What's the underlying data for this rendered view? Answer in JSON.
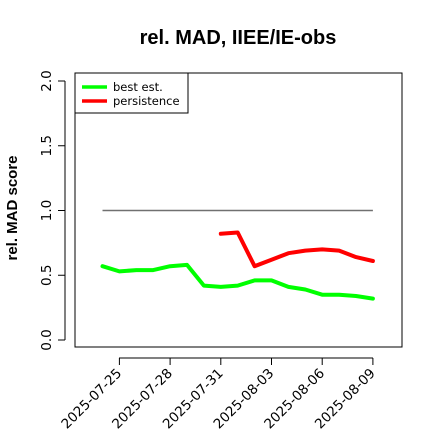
{
  "chart_data": {
    "type": "line",
    "title": "rel. MAD, IIEE/IE-obs",
    "xlabel": "",
    "ylabel": "rel. MAD score",
    "ylim": [
      0.0,
      2.0
    ],
    "yticks": [
      "0.0",
      "0.5",
      "1.0",
      "1.5",
      "2.0"
    ],
    "xticks": [
      "2025-07-25",
      "2025-07-28",
      "2025-07-31",
      "2025-08-03",
      "2025-08-06",
      "2025-08-09"
    ],
    "grid": false,
    "legend_position": "top-left",
    "series": [
      {
        "name": "best est.",
        "color": "#00ff00",
        "x": [
          "2025-07-24",
          "2025-07-25",
          "2025-07-26",
          "2025-07-27",
          "2025-07-28",
          "2025-07-29",
          "2025-07-30",
          "2025-07-31",
          "2025-08-01",
          "2025-08-02",
          "2025-08-03",
          "2025-08-04",
          "2025-08-05",
          "2025-08-06",
          "2025-08-07",
          "2025-08-08",
          "2025-08-09"
        ],
        "values": [
          0.57,
          0.53,
          0.54,
          0.54,
          0.57,
          0.58,
          0.42,
          0.41,
          0.42,
          0.46,
          0.46,
          0.41,
          0.39,
          0.35,
          0.35,
          0.34,
          0.32
        ]
      },
      {
        "name": "persistence",
        "color": "#ff0000",
        "x": [
          "2025-07-31",
          "2025-08-01",
          "2025-08-02",
          "2025-08-03",
          "2025-08-04",
          "2025-08-05",
          "2025-08-06",
          "2025-08-07",
          "2025-08-08",
          "2025-08-09"
        ],
        "values": [
          0.82,
          0.83,
          0.57,
          0.62,
          0.67,
          0.69,
          0.7,
          0.69,
          0.64,
          0.61
        ]
      }
    ],
    "reference_line": {
      "value": 1.0,
      "color": "#707070",
      "from": "2025-07-24",
      "to": "2025-08-09"
    }
  }
}
